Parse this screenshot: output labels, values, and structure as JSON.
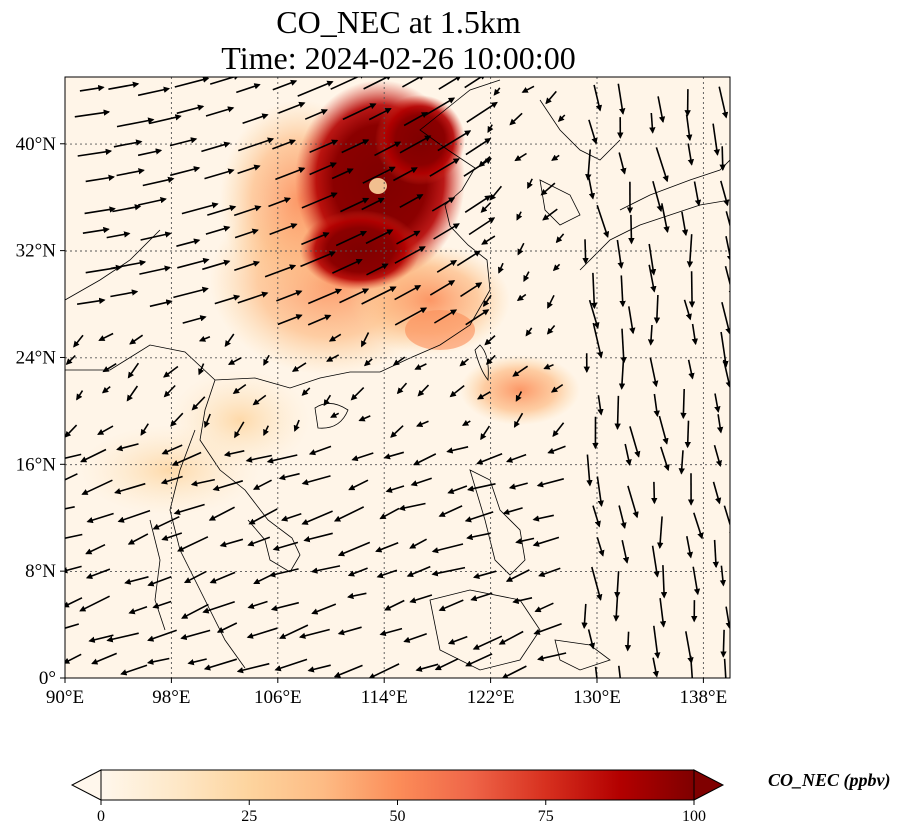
{
  "title_line1": "CO_NEC at 1.5km",
  "title_line2": "Time: 2024-02-26 10:00:00",
  "map": {
    "type": "heatmap",
    "lon_range": [
      90,
      140
    ],
    "lat_range": [
      0,
      45
    ],
    "lon_ticks": [
      {
        "value": 90,
        "label": "90°E"
      },
      {
        "value": 98,
        "label": "98°E"
      },
      {
        "value": 106,
        "label": "106°E"
      },
      {
        "value": 114,
        "label": "114°E"
      },
      {
        "value": 122,
        "label": "122°E"
      },
      {
        "value": 130,
        "label": "130°E"
      },
      {
        "value": 138,
        "label": "138°E"
      }
    ],
    "lat_ticks": [
      {
        "value": 0,
        "label": "0°"
      },
      {
        "value": 8,
        "label": "8°N"
      },
      {
        "value": 16,
        "label": "16°N"
      },
      {
        "value": 24,
        "label": "24°N"
      },
      {
        "value": 32,
        "label": "32°N"
      },
      {
        "value": 40,
        "label": "40°N"
      }
    ],
    "grid": true,
    "colormap": "OrRd",
    "overlay": "wind-vectors"
  },
  "colorbar": {
    "label": "CO_NEC (ppbv)",
    "min": 0,
    "max": 100,
    "ticks": [
      {
        "value": 0,
        "label": "0"
      },
      {
        "value": 25,
        "label": "25"
      },
      {
        "value": 50,
        "label": "50"
      },
      {
        "value": 75,
        "label": "75"
      },
      {
        "value": 100,
        "label": "100"
      }
    ],
    "extend": "both",
    "colors": [
      "#fff7ec",
      "#fee8c8",
      "#fdd49e",
      "#fdbb84",
      "#fc8d59",
      "#ef6548",
      "#d7301f",
      "#b30000",
      "#7f0000"
    ]
  }
}
